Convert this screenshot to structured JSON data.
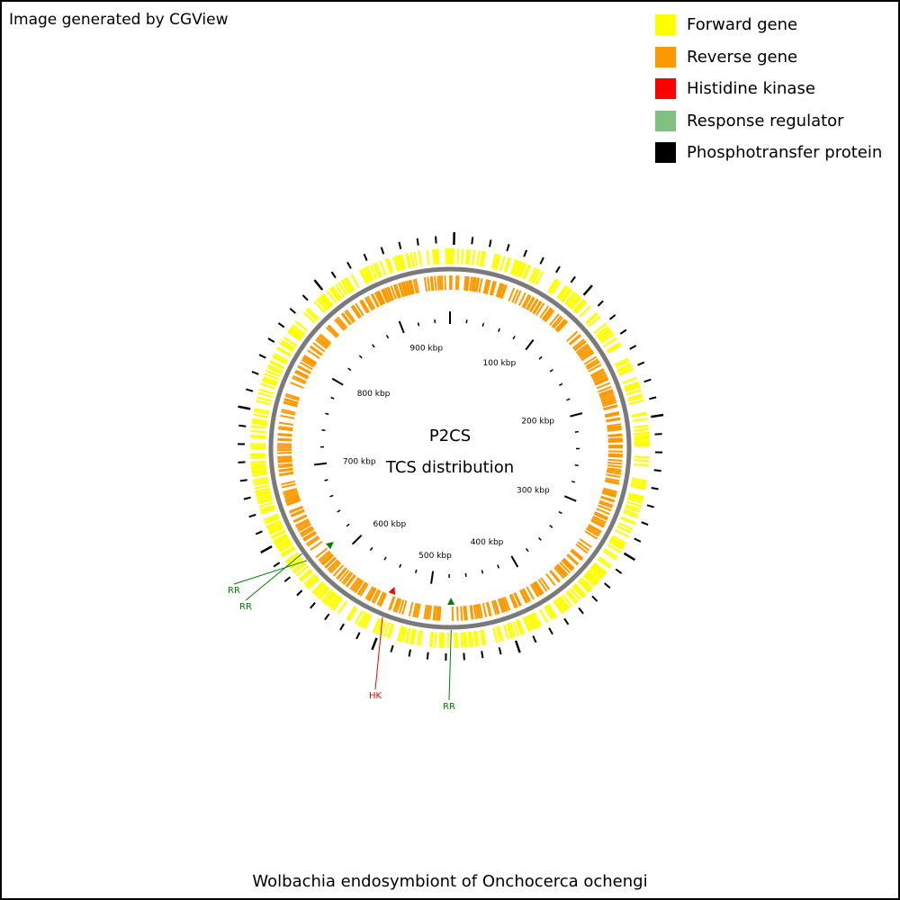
{
  "header": {
    "note": "Image generated by CGView"
  },
  "legend": [
    {
      "label": "Forward gene",
      "color": "#FFFF00"
    },
    {
      "label": "Reverse gene",
      "color": "#FF9900"
    },
    {
      "label": "Histidine kinase",
      "color": "#FF0000"
    },
    {
      "label": "Response regulator",
      "color": "#80C080"
    },
    {
      "label": "Phosphotransfer protein",
      "color": "#000000"
    }
  ],
  "center": {
    "line1": "P2CS",
    "line2": "TCS distribution"
  },
  "footer": {
    "title": "Wolbachia endosymbiont of Onchocerca ochengi"
  },
  "genome": {
    "length_kbp": 958,
    "scale_labels": [
      "100 kbp",
      "200 kbp",
      "300 kbp",
      "400 kbp",
      "500 kbp",
      "600 kbp",
      "700 kbp",
      "800 kbp",
      "900 kbp"
    ]
  },
  "features": [
    {
      "type": "RR",
      "position_kbp": 617,
      "color": "#008000"
    },
    {
      "type": "RR",
      "position_kbp": 624,
      "color": "#008000"
    },
    {
      "type": "HK",
      "position_kbp": 537,
      "color": "#FF0000"
    },
    {
      "type": "RR",
      "position_kbp": 478,
      "color": "#008000"
    }
  ]
}
